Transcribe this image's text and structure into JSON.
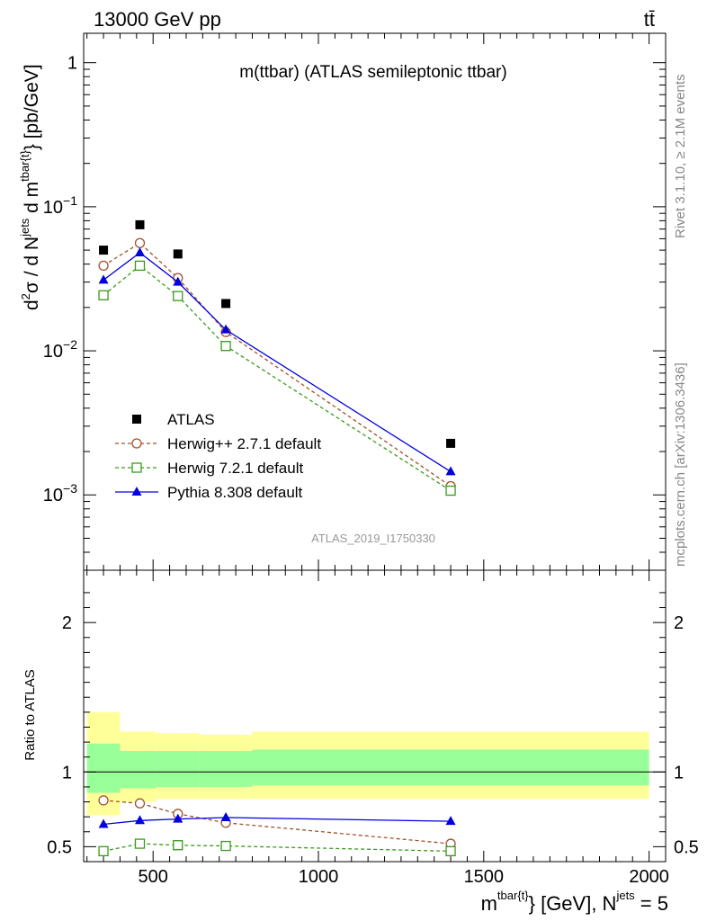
{
  "header": {
    "left": "13000 GeV pp",
    "right": "tt̄"
  },
  "side_text": {
    "top": "Rivet 3.1.10, ≥ 2.1M events",
    "bottom": "mcplots.cern.ch [arXiv:1306.3436]"
  },
  "colors": {
    "atlas": "#000000",
    "herwig_pp": "#a0522d",
    "herwig7": "#3a9a1a",
    "pythia": "#0000e0",
    "band_outer": "#ffff99",
    "band_inner": "#99ff99"
  },
  "chart_data": [
    {
      "type": "scatter",
      "panel": "main",
      "title": "m(ttbar) (ATLAS semileptonic ttbar)",
      "ylabel": "d²σ / d Nʲᵉᵗˢ d mᵗᵇᵃʳ⁽ᵗ⁾ [pb/GeV]",
      "ylabel_parts": {
        "d": "d",
        "sup2": "2",
        "sigma": "σ",
        "mid": " /  d N",
        "jets": "jets",
        "dm": " d m",
        "tbar": "tbar{t}",
        "unit": "} [pb/GeV]"
      },
      "yscale": "log",
      "ylim": [
        0.0003,
        1.6
      ],
      "xlim": [
        290,
        2050
      ],
      "y_ticks": [
        {
          "value": 1,
          "label": "1",
          "base": "1",
          "exp": ""
        },
        {
          "value": 0.1,
          "label": "10^-1",
          "base": "10",
          "exp": "−1"
        },
        {
          "value": 0.01,
          "label": "10^-2",
          "base": "10",
          "exp": "−2"
        },
        {
          "value": 0.001,
          "label": "10^-3",
          "base": "10",
          "exp": "−3"
        }
      ],
      "watermark": "ATLAS_2019_I1750330",
      "legend_position": "lower-left",
      "x": [
        350,
        460,
        575,
        720,
        1400
      ],
      "series": [
        {
          "name": "ATLAS",
          "style": "data",
          "values": [
            0.05,
            0.075,
            0.047,
            0.0213,
            0.00228
          ]
        },
        {
          "name": "Herwig++ 2.7.1 default",
          "style": "dashed-circle",
          "values": [
            0.039,
            0.056,
            0.032,
            0.0135,
            0.00115
          ]
        },
        {
          "name": "Herwig 7.2.1 default",
          "style": "dashed-square",
          "values": [
            0.0243,
            0.039,
            0.024,
            0.0108,
            0.00107
          ]
        },
        {
          "name": "Pythia 8.308 default",
          "style": "solid-triangle",
          "values": [
            0.031,
            0.048,
            0.03,
            0.014,
            0.00145
          ]
        }
      ]
    },
    {
      "type": "line",
      "panel": "ratio",
      "ylabel": "Ratio to ATLAS",
      "ylim": [
        0.4,
        2.35
      ],
      "xlim": [
        290,
        2050
      ],
      "y_ticks": [
        {
          "value": 2,
          "label": "2"
        },
        {
          "value": 1,
          "label": "1"
        },
        {
          "value": 0.5,
          "label": "0.5"
        }
      ],
      "x_ticks": [
        {
          "value": 500,
          "label": "500"
        },
        {
          "value": 1000,
          "label": "1000"
        },
        {
          "value": 1500,
          "label": "1500"
        },
        {
          "value": 2000,
          "label": "2000"
        }
      ],
      "xlabel": "mᵗᵇᵃʳ⁽ᵗ⁾} [GeV], Nʲᵉᵗˢ = 5",
      "xlabel_parts": {
        "m": "m",
        "tbar": "tbar{t}",
        "unit": "} [GeV], N",
        "jets": "jets",
        "eq": " = 5"
      },
      "bins": [
        {
          "lo": 300,
          "hi": 400,
          "outer": [
            0.71,
            1.4
          ],
          "inner": [
            0.86,
            1.19
          ]
        },
        {
          "lo": 400,
          "hi": 510,
          "outer": [
            0.8,
            1.27
          ],
          "inner": [
            0.89,
            1.14
          ]
        },
        {
          "lo": 510,
          "hi": 640,
          "outer": [
            0.82,
            1.26
          ],
          "inner": [
            0.9,
            1.14
          ]
        },
        {
          "lo": 640,
          "hi": 800,
          "outer": [
            0.82,
            1.25
          ],
          "inner": [
            0.9,
            1.14
          ]
        },
        {
          "lo": 800,
          "hi": 2000,
          "outer": [
            0.82,
            1.27
          ],
          "inner": [
            0.91,
            1.15
          ]
        }
      ],
      "x": [
        350,
        460,
        575,
        720,
        1400
      ],
      "series": [
        {
          "name": "Herwig++ 2.7.1 default",
          "style": "dashed-circle",
          "values": [
            0.81,
            0.79,
            0.72,
            0.66,
            0.52
          ]
        },
        {
          "name": "Herwig 7.2.1 default",
          "style": "dashed-square",
          "values": [
            0.47,
            0.52,
            0.51,
            0.505,
            0.47
          ]
        },
        {
          "name": "Pythia 8.308 default",
          "style": "solid-triangle",
          "values": [
            0.65,
            0.675,
            0.685,
            0.695,
            0.67
          ]
        }
      ]
    }
  ]
}
